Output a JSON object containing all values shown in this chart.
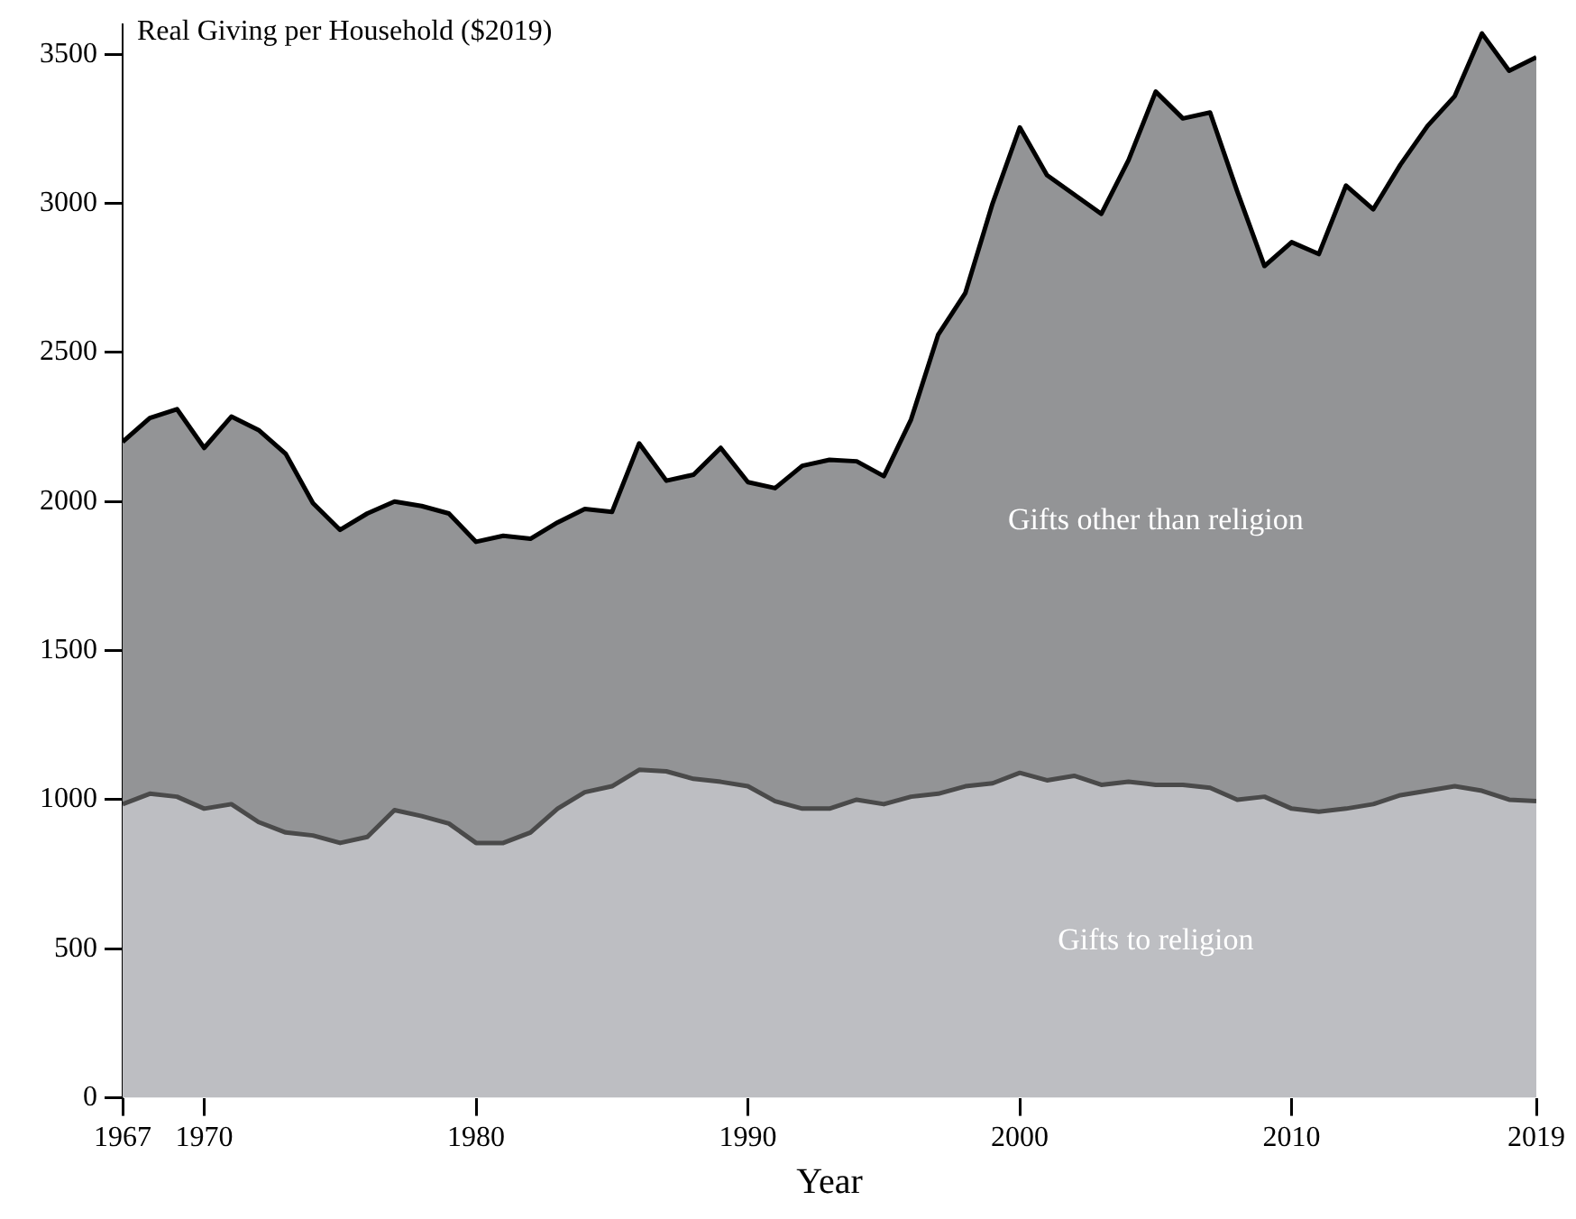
{
  "chart_data": {
    "type": "area",
    "stacked": true,
    "title": "Real Giving per Household ($2019)",
    "xlabel": "Year",
    "x": [
      1967,
      1968,
      1969,
      1970,
      1971,
      1972,
      1973,
      1974,
      1975,
      1976,
      1977,
      1978,
      1979,
      1980,
      1981,
      1982,
      1983,
      1984,
      1985,
      1986,
      1987,
      1988,
      1989,
      1990,
      1991,
      1992,
      1993,
      1994,
      1995,
      1996,
      1997,
      1998,
      1999,
      2000,
      2001,
      2002,
      2003,
      2004,
      2005,
      2006,
      2007,
      2008,
      2009,
      2010,
      2011,
      2012,
      2013,
      2014,
      2015,
      2016,
      2017,
      2018,
      2019
    ],
    "series": [
      {
        "name": "Gifts to religion",
        "color": "#bdbec2",
        "values": [
          985,
          1020,
          1010,
          970,
          985,
          925,
          890,
          880,
          855,
          875,
          965,
          945,
          920,
          855,
          855,
          890,
          970,
          1025,
          1045,
          1100,
          1095,
          1070,
          1060,
          1045,
          995,
          970,
          970,
          1000,
          985,
          1010,
          1020,
          1045,
          1055,
          1090,
          1065,
          1080,
          1050,
          1060,
          1050,
          1050,
          1040,
          1000,
          1010,
          970,
          960,
          970,
          985,
          1015,
          1030,
          1045,
          1030,
          1000,
          995
        ]
      },
      {
        "name": "Gifts other than religion",
        "color": "#939496",
        "values": [
          1215,
          1260,
          1300,
          1210,
          1300,
          1315,
          1270,
          1115,
          1050,
          1085,
          1035,
          1040,
          1040,
          1010,
          1030,
          985,
          960,
          950,
          920,
          1095,
          975,
          1020,
          1120,
          1020,
          1050,
          1150,
          1170,
          1135,
          1100,
          1265,
          1540,
          1655,
          1945,
          2165,
          2030,
          1950,
          1915,
          2085,
          2325,
          2235,
          2265,
          2040,
          1780,
          1900,
          1870,
          2090,
          1995,
          2115,
          2230,
          2315,
          2540,
          2445,
          2495
        ]
      }
    ],
    "xlim": [
      1967,
      2019
    ],
    "xticks": [
      1967,
      1970,
      1980,
      1990,
      2000,
      2010,
      2019
    ],
    "ylim": [
      0,
      3600
    ],
    "yticks": [
      0,
      500,
      1000,
      1500,
      2000,
      2500,
      3000,
      3500
    ],
    "grid": false,
    "legend": false
  }
}
